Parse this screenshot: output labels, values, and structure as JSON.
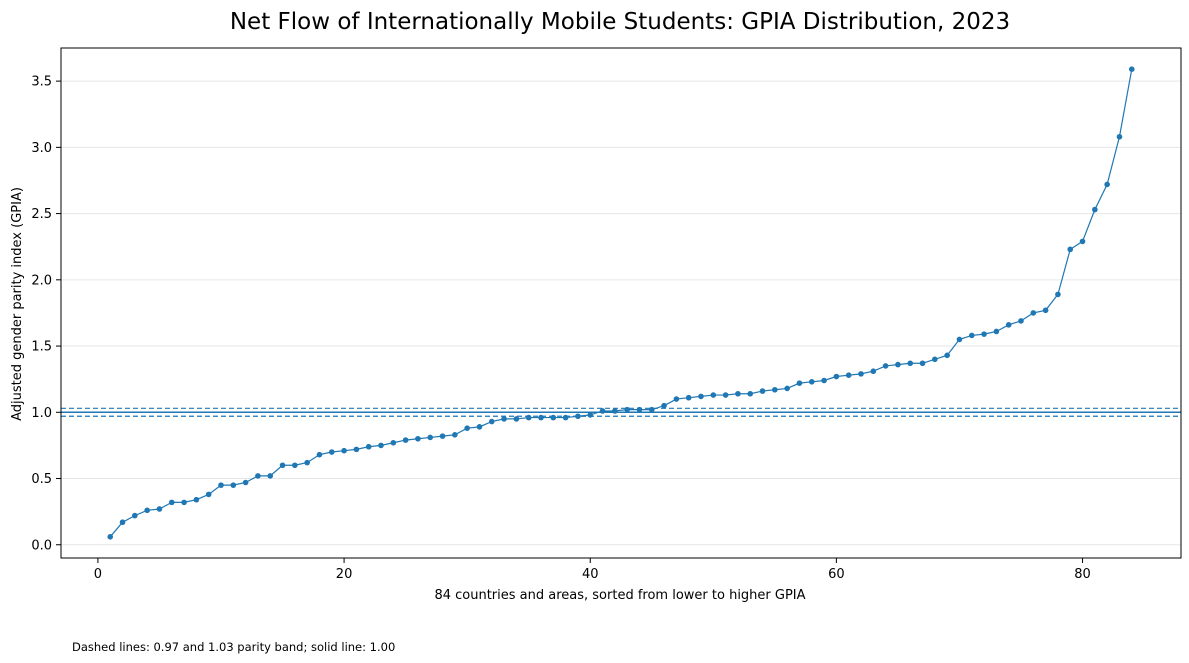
{
  "chart_data": {
    "type": "line",
    "title": "Net Flow of Internationally Mobile Students: GPIA Distribution, 2023",
    "xlabel": "84 countries and areas, sorted from lower to higher GPIA",
    "ylabel": "Adjusted gender parity index (GPIA)",
    "xlim": [
      -3,
      88
    ],
    "ylim": [
      -0.1,
      3.75
    ],
    "xticks": [
      0,
      20,
      40,
      60,
      80
    ],
    "xtick_labels": [
      "0",
      "20",
      "40",
      "60",
      "80"
    ],
    "yticks": [
      0.0,
      0.5,
      1.0,
      1.5,
      2.0,
      2.5,
      3.0,
      3.5
    ],
    "ytick_labels": [
      "0.0",
      "0.5",
      "1.0",
      "1.5",
      "2.0",
      "2.5",
      "3.0",
      "3.5"
    ],
    "grid": "horizontal",
    "color": "#1f77b4",
    "reference_lines": [
      {
        "y": 0.97,
        "style": "dashed"
      },
      {
        "y": 1.0,
        "style": "solid"
      },
      {
        "y": 1.03,
        "style": "dashed"
      }
    ],
    "series": [
      {
        "x": [
          1,
          2,
          3,
          4,
          5,
          6,
          7,
          8,
          9,
          10,
          11,
          12,
          13,
          14,
          15,
          16,
          17,
          18,
          19,
          20,
          21,
          22,
          23,
          24,
          25,
          26,
          27,
          28,
          29,
          30,
          31,
          32,
          33,
          34,
          35,
          36,
          37,
          38,
          39,
          40,
          41,
          42,
          43,
          44,
          45,
          46,
          47,
          48,
          49,
          50,
          51,
          52,
          53,
          54,
          55,
          56,
          57,
          58,
          59,
          60,
          61,
          62,
          63,
          64,
          65,
          66,
          67,
          68,
          69,
          70,
          71,
          72,
          73,
          74,
          75,
          76,
          77,
          78,
          79,
          80,
          81,
          82,
          83,
          84
        ],
        "y": [
          0.06,
          0.17,
          0.22,
          0.26,
          0.27,
          0.32,
          0.32,
          0.34,
          0.38,
          0.45,
          0.45,
          0.47,
          0.52,
          0.52,
          0.6,
          0.6,
          0.62,
          0.68,
          0.7,
          0.71,
          0.72,
          0.74,
          0.75,
          0.77,
          0.79,
          0.8,
          0.81,
          0.82,
          0.83,
          0.88,
          0.89,
          0.93,
          0.95,
          0.95,
          0.96,
          0.96,
          0.96,
          0.96,
          0.97,
          0.98,
          1.01,
          1.01,
          1.02,
          1.02,
          1.02,
          1.05,
          1.1,
          1.11,
          1.12,
          1.13,
          1.13,
          1.14,
          1.14,
          1.16,
          1.17,
          1.18,
          1.22,
          1.23,
          1.24,
          1.27,
          1.28,
          1.29,
          1.31,
          1.35,
          1.36,
          1.37,
          1.37,
          1.4,
          1.43,
          1.55,
          1.58,
          1.59,
          1.61,
          1.66,
          1.69,
          1.75,
          1.77,
          1.89,
          2.23,
          2.29,
          2.53,
          2.72,
          3.08,
          3.59
        ]
      }
    ],
    "footnote": "Dashed lines: 0.97 and 1.03 parity band; solid line: 1.00"
  }
}
